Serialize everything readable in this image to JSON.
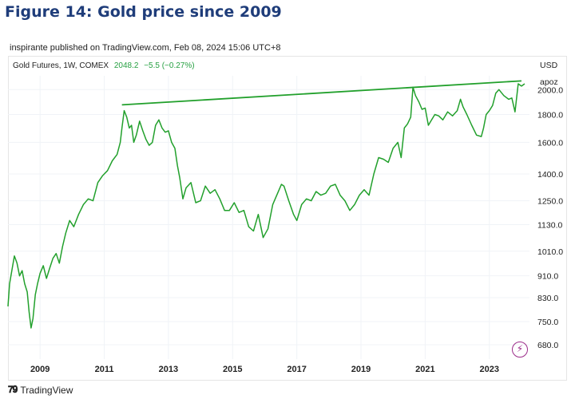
{
  "figure_title": "Figure 14: Gold price since 2009",
  "published_line": "inspirante published on TradingView.com, Feb 08, 2024 15:06 UTC+8",
  "legend": {
    "instrument": "Gold Futures, 1W, COMEX",
    "last_price": "2048.2",
    "change": "−5.5 (−0.27%)"
  },
  "axis_currency": "USD",
  "axis_unit": "apoz",
  "footer_brand": "TradingView",
  "colors": {
    "series": "#22a02c",
    "title": "#1f3d7a",
    "icon": "#9c2c8a"
  },
  "chart_data": {
    "type": "line",
    "y_scale": "log",
    "ylim": [
      640,
      2120
    ],
    "xlim": [
      2008.0,
      2024.25
    ],
    "x_tick_labels": [
      "2009",
      "2011",
      "2013",
      "2015",
      "2017",
      "2019",
      "2021",
      "2023"
    ],
    "x_ticks": [
      2009,
      2011,
      2013,
      2015,
      2017,
      2019,
      2021,
      2023
    ],
    "y_tick_labels": [
      "2000.0",
      "1800.0",
      "1600.0",
      "1400.0",
      "1250.0",
      "1130.0",
      "1010.0",
      "910.0",
      "830.0",
      "750.0",
      "680.0"
    ],
    "y_ticks": [
      2000,
      1800,
      1600,
      1400,
      1250,
      1130,
      1010,
      910,
      830,
      750,
      680
    ],
    "series": [
      {
        "x": [
          2008.0,
          2008.05,
          2008.12,
          2008.2,
          2008.28,
          2008.36,
          2008.44,
          2008.52,
          2008.6,
          2008.66,
          2008.72,
          2008.78,
          2008.85,
          2008.92,
          2009.0,
          2009.1,
          2009.2,
          2009.3,
          2009.4,
          2009.5,
          2009.6,
          2009.7,
          2009.8,
          2009.92,
          2010.05,
          2010.2,
          2010.35,
          2010.5,
          2010.65,
          2010.8,
          2010.95,
          2011.1,
          2011.25,
          2011.4,
          2011.5,
          2011.55,
          2011.62,
          2011.7,
          2011.78,
          2011.85,
          2011.92,
          2012.0,
          2012.1,
          2012.2,
          2012.3,
          2012.4,
          2012.5,
          2012.6,
          2012.7,
          2012.8,
          2012.9,
          2013.0,
          2013.1,
          2013.2,
          2013.28,
          2013.35,
          2013.45,
          2013.55,
          2013.7,
          2013.85,
          2014.0,
          2014.15,
          2014.3,
          2014.45,
          2014.6,
          2014.75,
          2014.9,
          2015.05,
          2015.2,
          2015.35,
          2015.5,
          2015.65,
          2015.8,
          2015.95,
          2016.1,
          2016.25,
          2016.4,
          2016.52,
          2016.6,
          2016.75,
          2016.9,
          2017.0,
          2017.15,
          2017.3,
          2017.45,
          2017.6,
          2017.75,
          2017.9,
          2018.05,
          2018.2,
          2018.35,
          2018.5,
          2018.65,
          2018.8,
          2018.95,
          2019.1,
          2019.25,
          2019.4,
          2019.55,
          2019.7,
          2019.85,
          2020.0,
          2020.15,
          2020.25,
          2020.35,
          2020.45,
          2020.55,
          2020.62,
          2020.7,
          2020.8,
          2020.9,
          2021.0,
          2021.1,
          2021.2,
          2021.3,
          2021.42,
          2021.55,
          2021.7,
          2021.85,
          2022.0,
          2022.1,
          2022.18,
          2022.3,
          2022.45,
          2022.6,
          2022.75,
          2022.82,
          2022.9,
          2023.0,
          2023.1,
          2023.2,
          2023.3,
          2023.45,
          2023.6,
          2023.7,
          2023.8,
          2023.9,
          2024.0,
          2024.1
        ],
        "values": [
          800,
          880,
          930,
          990,
          960,
          910,
          930,
          880,
          850,
          780,
          730,
          760,
          840,
          880,
          920,
          950,
          900,
          940,
          980,
          1000,
          960,
          1030,
          1090,
          1150,
          1120,
          1180,
          1230,
          1260,
          1250,
          1350,
          1390,
          1420,
          1480,
          1520,
          1600,
          1700,
          1830,
          1780,
          1700,
          1720,
          1600,
          1650,
          1750,
          1680,
          1620,
          1580,
          1600,
          1720,
          1760,
          1700,
          1670,
          1680,
          1600,
          1560,
          1450,
          1380,
          1260,
          1320,
          1350,
          1240,
          1250,
          1330,
          1290,
          1310,
          1260,
          1200,
          1200,
          1240,
          1190,
          1200,
          1120,
          1100,
          1180,
          1070,
          1110,
          1230,
          1290,
          1340,
          1330,
          1250,
          1180,
          1150,
          1230,
          1260,
          1250,
          1300,
          1280,
          1290,
          1330,
          1340,
          1280,
          1250,
          1200,
          1230,
          1280,
          1310,
          1280,
          1400,
          1500,
          1490,
          1470,
          1560,
          1600,
          1500,
          1700,
          1730,
          1780,
          2020,
          1950,
          1900,
          1840,
          1850,
          1720,
          1760,
          1800,
          1790,
          1760,
          1820,
          1790,
          1830,
          1920,
          1860,
          1800,
          1720,
          1650,
          1640,
          1700,
          1800,
          1830,
          1870,
          1970,
          2000,
          1950,
          1920,
          1930,
          1820,
          2050,
          2030,
          2050
        ]
      }
    ],
    "trendline": {
      "x": [
        2011.55,
        2024.0
      ],
      "values": [
        1875,
        2075
      ]
    }
  }
}
